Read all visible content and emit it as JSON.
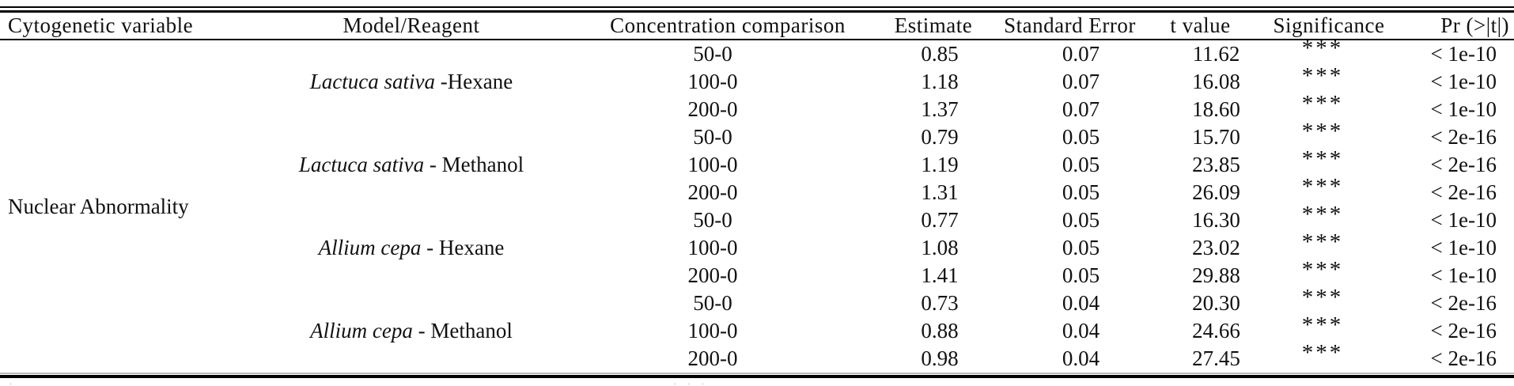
{
  "colors": {
    "ink": "#111111",
    "rule": "#000000",
    "faint": "#a9a9a9"
  },
  "table": {
    "headers": {
      "variable": "Cytogenetic variable",
      "model": "Model/Reagent",
      "comparison": "Concentration comparison",
      "estimate": "Estimate",
      "std_error": "Standard Error",
      "t_value": "t value",
      "significance": "Significance",
      "pr": "Pr (>|t|)"
    },
    "variable": "Nuclear Abnormality",
    "groups": [
      {
        "model_italic": "Lactuca sativa",
        "model_rest": " -Hexane",
        "rows": [
          {
            "comparison": "50-0",
            "estimate": "0.85",
            "std_error": "0.07",
            "t_value": "11.62",
            "significance": "***",
            "pr": "< 1e-10"
          },
          {
            "comparison": "100-0",
            "estimate": "1.18",
            "std_error": "0.07",
            "t_value": "16.08",
            "significance": "***",
            "pr": "< 1e-10"
          },
          {
            "comparison": "200-0",
            "estimate": "1.37",
            "std_error": "0.07",
            "t_value": "18.60",
            "significance": "***",
            "pr": "< 1e-10"
          }
        ]
      },
      {
        "model_italic": "Lactuca sativa",
        "model_rest": " - Methanol",
        "rows": [
          {
            "comparison": "50-0",
            "estimate": "0.79",
            "std_error": "0.05",
            "t_value": "15.70",
            "significance": "***",
            "pr": "< 2e-16"
          },
          {
            "comparison": "100-0",
            "estimate": "1.19",
            "std_error": "0.05",
            "t_value": "23.85",
            "significance": "***",
            "pr": "< 2e-16"
          },
          {
            "comparison": "200-0",
            "estimate": "1.31",
            "std_error": "0.05",
            "t_value": "26.09",
            "significance": "***",
            "pr": "< 2e-16"
          }
        ]
      },
      {
        "model_italic": "Allium cepa",
        "model_rest": " - Hexane",
        "rows": [
          {
            "comparison": "50-0",
            "estimate": "0.77",
            "std_error": "0.05",
            "t_value": "16.30",
            "significance": "***",
            "pr": "< 1e-10"
          },
          {
            "comparison": "100-0",
            "estimate": "1.08",
            "std_error": "0.05",
            "t_value": "23.02",
            "significance": "***",
            "pr": "< 1e-10"
          },
          {
            "comparison": "200-0",
            "estimate": "1.41",
            "std_error": "0.05",
            "t_value": "29.88",
            "significance": "***",
            "pr": "< 1e-10"
          }
        ]
      },
      {
        "model_italic": "Allium cepa",
        "model_rest": " - Methanol",
        "rows": [
          {
            "comparison": "50-0",
            "estimate": "0.73",
            "std_error": "0.04",
            "t_value": "20.30",
            "significance": "***",
            "pr": "< 2e-16"
          },
          {
            "comparison": "100-0",
            "estimate": "0.88",
            "std_error": "0.04",
            "t_value": "24.66",
            "significance": "***",
            "pr": "< 2e-16"
          },
          {
            "comparison": "200-0",
            "estimate": "0.98",
            "std_error": "0.04",
            "t_value": "27.45",
            "significance": "***",
            "pr": "< 2e-16"
          }
        ]
      }
    ],
    "footnote_fragments": {
      "left": ".",
      "center": ". . ."
    }
  }
}
